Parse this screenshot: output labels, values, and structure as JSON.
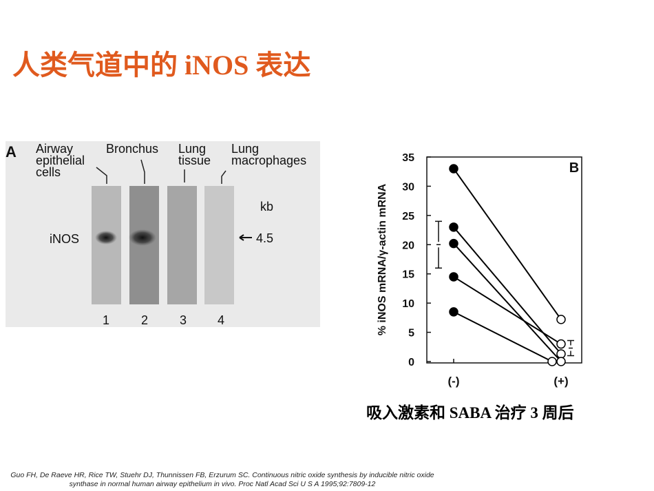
{
  "title": "人类气道中的 iNOS 表达",
  "blot": {
    "panel": "A",
    "lanes": [
      "Airway epithelial cells",
      "Bronchus",
      "Lung tissue",
      "Lung macrophages"
    ],
    "lane_numbers": [
      "1",
      "2",
      "3",
      "4"
    ],
    "row_label": "iNOS",
    "size_unit": "kb",
    "size": "4.5"
  },
  "chart_data": {
    "type": "paired",
    "panel": "B",
    "y_label": "% iNOS mRNA/γ-actin mRNA",
    "categories": [
      "(-)",
      "(+)"
    ],
    "series": [
      {
        "color": "#000000",
        "values": [
          33,
          7.2
        ]
      },
      {
        "color": "#000000",
        "values": [
          23,
          1.3
        ]
      },
      {
        "color": "#000000",
        "values": [
          20.2,
          0
        ]
      },
      {
        "color": "#000000",
        "values": [
          14.5,
          3
        ]
      },
      {
        "color": "#000000",
        "values": [
          8.5,
          0
        ]
      }
    ],
    "error_bars": {
      "values": [
        20,
        2.3
      ],
      "errors": [
        4,
        1.3
      ]
    },
    "ylim": [
      0,
      35
    ],
    "yticks": [
      0,
      5,
      10,
      15,
      20,
      25,
      30,
      35
    ]
  },
  "caption": "吸入激素和 SABA 治疗 3 周后",
  "citation": "Guo FH, De Raeve HR, Rice TW, Stuehr DJ, Thunnissen FB, Erzurum SC. Continuous nitric oxide synthesis by inducible nitric oxide synthase in normal human airway epithelium in vivo. Proc Natl Acad Sci U S A 1995;92:7809-12"
}
